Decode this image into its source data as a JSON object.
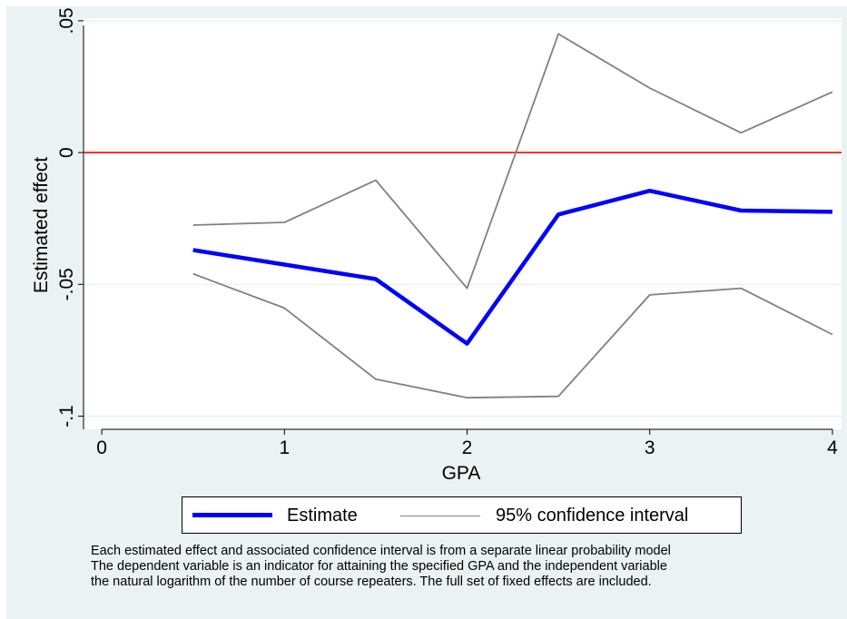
{
  "chart_data": {
    "type": "line",
    "title": "",
    "xlabel": "GPA",
    "ylabel": "Estimated effect",
    "xlim": [
      -0.1,
      4.05
    ],
    "ylim": [
      -0.105,
      0.051
    ],
    "x_ticks": [
      0,
      1,
      2,
      3,
      4
    ],
    "x_tick_labels": [
      "0",
      "1",
      "2",
      "3",
      "4"
    ],
    "y_ticks": [
      -0.1,
      -0.05,
      0,
      0.05
    ],
    "y_tick_labels": [
      "-.1",
      "-.05",
      "0",
      ".05"
    ],
    "grid": true,
    "reference_line": {
      "y": 0,
      "color": "#ff0000"
    },
    "x": [
      0.5,
      1,
      1.5,
      2,
      2.5,
      3,
      3.5,
      4
    ],
    "series": [
      {
        "name": "Estimate",
        "color": "#0000ff",
        "style": "thick",
        "values": [
          -0.037,
          -0.0425,
          -0.048,
          -0.0725,
          -0.0235,
          -0.0145,
          -0.022,
          -0.0225
        ]
      },
      {
        "name": "95% confidence interval",
        "color": "#808080",
        "style": "thin",
        "part": "upper",
        "values": [
          -0.0275,
          -0.0265,
          -0.0105,
          -0.0515,
          0.045,
          0.0245,
          0.0075,
          0.023
        ]
      },
      {
        "name": "95% confidence interval",
        "color": "#808080",
        "style": "thin",
        "part": "lower",
        "values": [
          -0.046,
          -0.059,
          -0.086,
          -0.093,
          -0.0925,
          -0.054,
          -0.0515,
          -0.069
        ]
      }
    ],
    "legend": {
      "position": "bottom",
      "entries": [
        "Estimate",
        "95% confidence interval"
      ]
    }
  },
  "colors": {
    "panel_background": "#eaf2f3",
    "plot_background": "#ffffff",
    "grid": "#e6efef",
    "estimate": "#0000ff",
    "confidence_interval": "#808080",
    "reference": "#ff0000"
  },
  "note": {
    "lines": [
      "Each estimated effect and associated confidence interval is from a separate linear probability model",
      "The dependent variable is an indicator for attaining the specified GPA and the independent variable",
      "the natural logarithm of the number of course repeaters. The full set of fixed effects are included."
    ]
  }
}
